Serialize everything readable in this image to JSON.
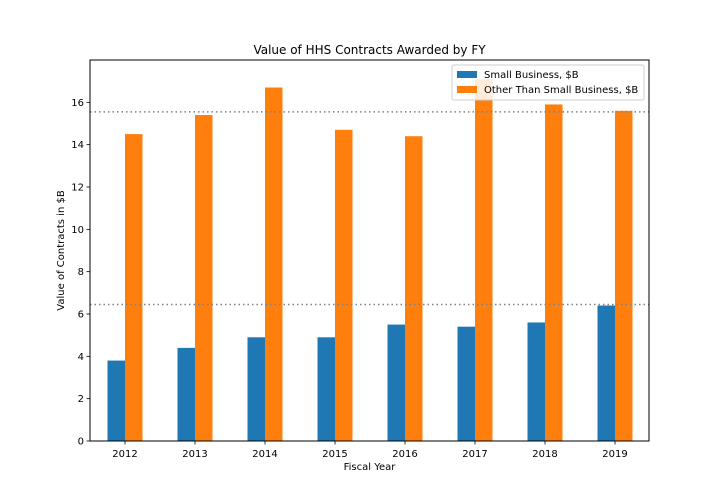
{
  "chart_data": {
    "type": "bar",
    "title": "Value of HHS Contracts Awarded by FY",
    "xlabel": "Fiscal Year",
    "ylabel": "Value of Contracts in $B",
    "categories": [
      "2012",
      "2013",
      "2014",
      "2015",
      "2016",
      "2017",
      "2018",
      "2019"
    ],
    "series": [
      {
        "name": "Small Business, $B",
        "color": "#1f77b4",
        "values": [
          3.8,
          4.4,
          4.9,
          4.9,
          5.5,
          5.4,
          5.6,
          6.4
        ]
      },
      {
        "name": "Other Than Small Business, $B",
        "color": "#ff7f0e",
        "values": [
          14.5,
          15.4,
          16.7,
          14.7,
          14.4,
          17.1,
          15.9,
          15.6
        ]
      }
    ],
    "ylim": [
      0,
      18
    ],
    "yticks": [
      0,
      2,
      4,
      6,
      8,
      10,
      12,
      14,
      16
    ],
    "reference_lines": [
      15.55,
      6.45
    ],
    "grid": false,
    "legend_position": "top-right"
  }
}
